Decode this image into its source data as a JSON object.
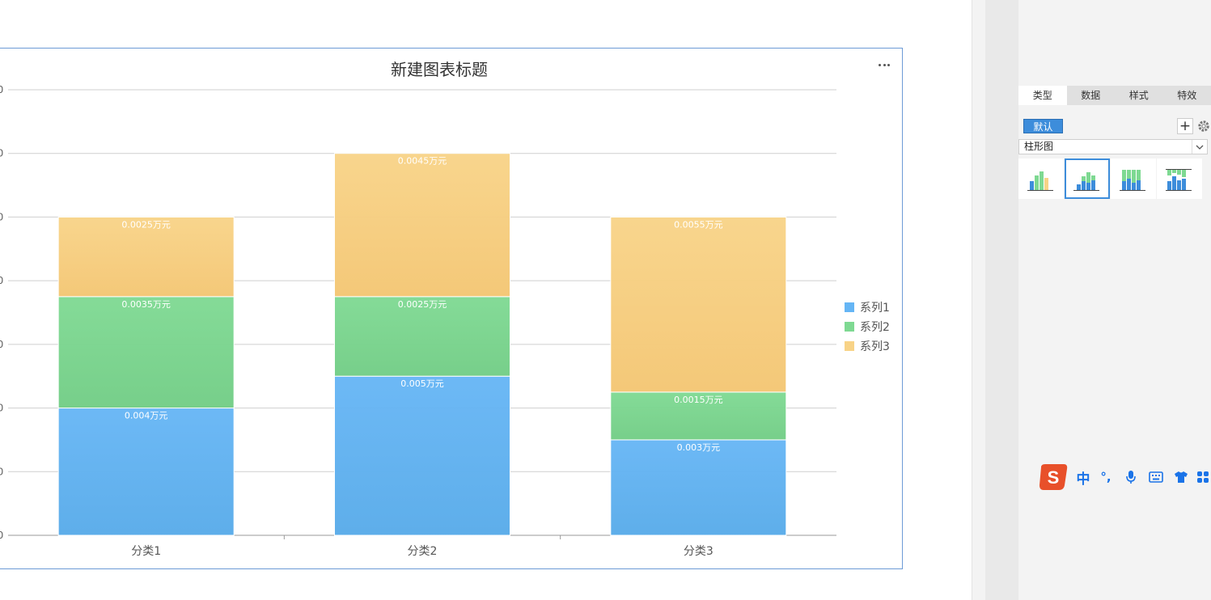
{
  "chart_data": {
    "type": "bar",
    "stacked": true,
    "title": "新建图表标题",
    "categories": [
      "分类1",
      "分类2",
      "分类3"
    ],
    "series": [
      {
        "name": "系列1",
        "values": [
          40,
          50,
          30
        ],
        "labels": [
          "0.004万元",
          "0.005万元",
          "0.003万元"
        ],
        "color": "#65b5f5"
      },
      {
        "name": "系列2",
        "values": [
          35,
          25,
          15
        ],
        "labels": [
          "0.0035万元",
          "0.0025万元",
          "0.0015万元"
        ],
        "color": "#7ed992"
      },
      {
        "name": "系列3",
        "values": [
          25,
          45,
          55
        ],
        "labels": [
          "0.0025万元",
          "0.0045万元",
          "0.0055万元"
        ],
        "color": "#f8d387"
      }
    ],
    "ylim": [
      0,
      140
    ],
    "grid": true,
    "legend": "right"
  },
  "panel": {
    "tabs": [
      "类型",
      "数据",
      "样式",
      "特效"
    ],
    "active_tab": 0,
    "default_tag": "默认",
    "add_label": "+",
    "chart_type": "柱形图",
    "variant_icons": [
      "clustered-column-icon",
      "stacked-column-icon",
      "percent-stacked-column-icon",
      "custom-column-icon"
    ],
    "selected_variant": 1
  },
  "ime": {
    "logo": "S",
    "mode": "中",
    "punct": "°,"
  },
  "colors": {
    "accent": "#3d8ddb",
    "frame_border": "#6d9bd6"
  }
}
